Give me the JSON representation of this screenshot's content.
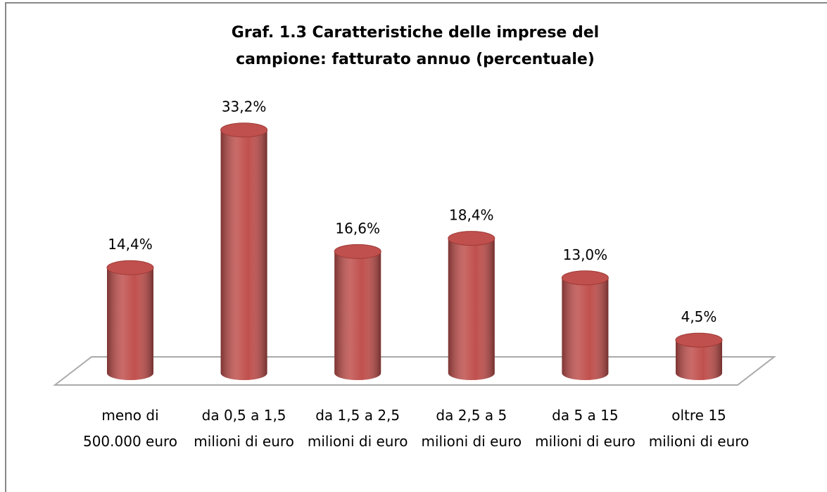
{
  "chart_data": {
    "type": "bar",
    "title": "Graf. 1.3 Caratteristiche delle imprese del campione: fatturato annuo (percentuale)",
    "categories": [
      "meno di 500.000 euro",
      "da 0,5 a 1,5 milioni di euro",
      "da 1,5 a 2,5 milioni di euro",
      "da 2,5 a 5 milioni di euro",
      "da 5 a 15 milioni di euro",
      "oltre 15 milioni di euro"
    ],
    "values": [
      14.4,
      33.2,
      16.6,
      18.4,
      13.0,
      4.5
    ],
    "value_labels": [
      "14,4%",
      "33,2%",
      "16,6%",
      "18,4%",
      "13,0%",
      "4,5%"
    ],
    "color": "#c0504d"
  }
}
